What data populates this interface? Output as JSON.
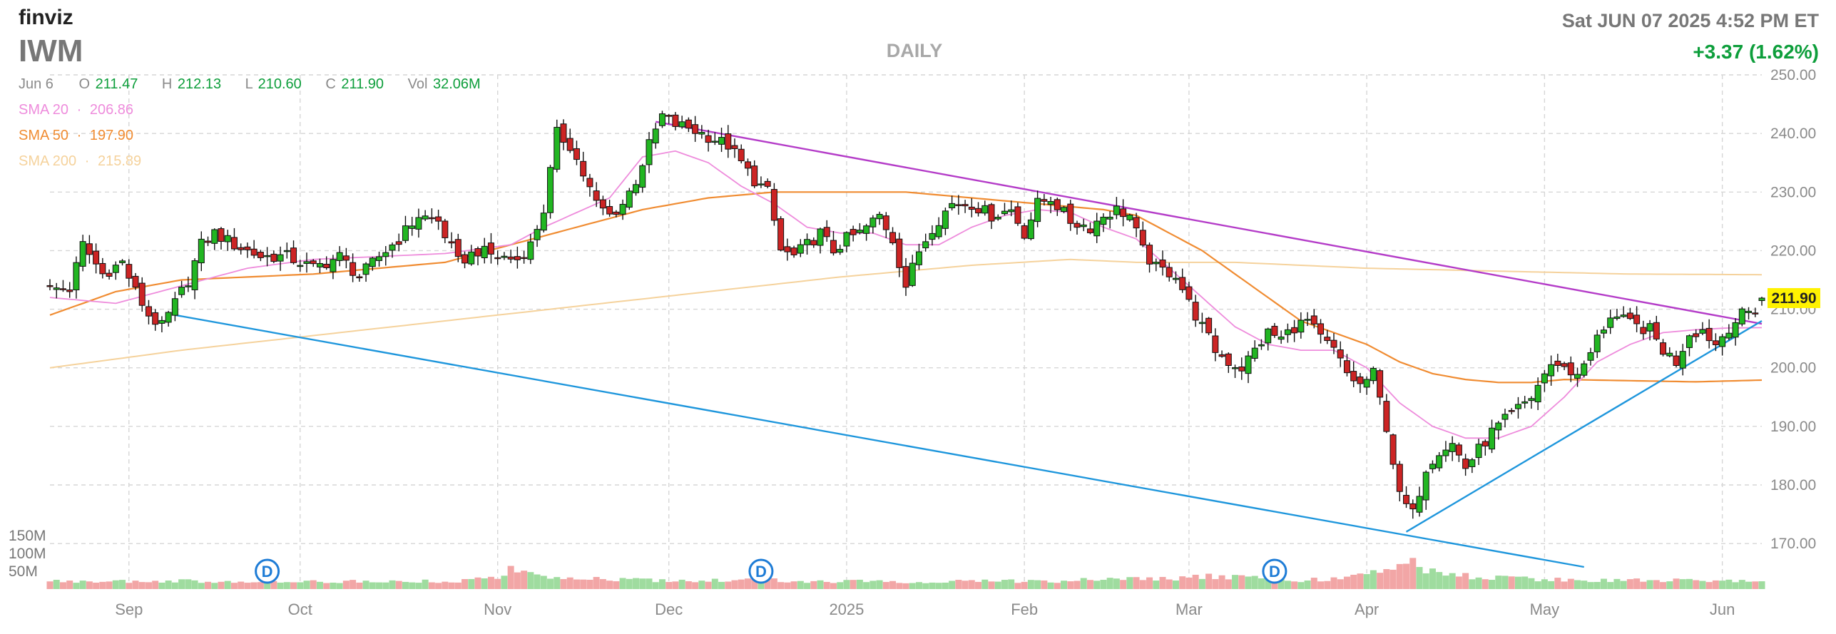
{
  "header": {
    "brand": "finviz",
    "ticker": "IWM",
    "timeframe": "DAILY",
    "datetime": "Sat JUN 07 2025 4:52 PM ET",
    "change": "+3.37 (1.62%)",
    "ohlc": {
      "date": "Jun 6",
      "o_label": "O",
      "o": "211.47",
      "h_label": "H",
      "h": "212.13",
      "l_label": "L",
      "l": "210.60",
      "c_label": "C",
      "c": "211.90",
      "vol_label": "Vol",
      "vol": "32.06M"
    },
    "sma": [
      {
        "label": "SMA 20",
        "value": "206.86"
      },
      {
        "label": "SMA 50",
        "value": "197.90"
      },
      {
        "label": "SMA 200",
        "value": "215.89"
      }
    ]
  },
  "colors": {
    "up": "#22b622",
    "down": "#cc2424",
    "vol_up": "#9fdc9f",
    "vol_down": "#f2a6a6",
    "sma20": "#ee8cdc",
    "sma50": "#f08c32",
    "sma200": "#f5d29c",
    "trend_upper": "#b43cc8",
    "trend_lower": "#1e96dc",
    "price_label_bg": "#fff200",
    "grid": "#d6d6d6",
    "axis_text": "#8a8a8a",
    "header_gray": "#777777",
    "header_green": "#0d9e3b",
    "dividend_blue": "#1e7cd6"
  },
  "chart_data": {
    "type": "candlestick",
    "ylim": [
      166,
      250
    ],
    "y_ticks": [
      {
        "value": 170,
        "label": "170.00"
      },
      {
        "value": 180,
        "label": "180.00"
      },
      {
        "value": 190,
        "label": "190.00"
      },
      {
        "value": 200,
        "label": "200.00"
      },
      {
        "value": 210,
        "label": "210.00"
      },
      {
        "value": 220,
        "label": "220.00"
      },
      {
        "value": 230,
        "label": "230.00"
      },
      {
        "value": 240,
        "label": "240.00"
      },
      {
        "value": 250,
        "label": "250.00"
      }
    ],
    "x_ticks": [
      {
        "bar": 12,
        "label": "Sep"
      },
      {
        "bar": 38,
        "label": "Oct"
      },
      {
        "bar": 68,
        "label": "Nov"
      },
      {
        "bar": 94,
        "label": "Dec"
      },
      {
        "bar": 121,
        "label": "2025"
      },
      {
        "bar": 148,
        "label": "Feb"
      },
      {
        "bar": 173,
        "label": "Mar"
      },
      {
        "bar": 200,
        "label": "Apr"
      },
      {
        "bar": 227,
        "label": "May"
      },
      {
        "bar": 254,
        "label": "Jun"
      }
    ],
    "last_price": {
      "value": 211.9,
      "label": "211.90"
    },
    "volume_scale_max": 220,
    "volume_ticks": [
      {
        "value": 150,
        "label": "150M"
      },
      {
        "value": 100,
        "label": "100M"
      },
      {
        "value": 50,
        "label": "50M"
      }
    ],
    "dividend_marks": [
      {
        "bar": 33,
        "label": "D"
      },
      {
        "bar": 108,
        "label": "D"
      },
      {
        "bar": 186,
        "label": "D"
      }
    ],
    "trendlines": [
      {
        "name": "upper",
        "from": {
          "bar": 92,
          "value": 242
        },
        "to": {
          "bar": 260,
          "value": 207.5
        }
      },
      {
        "name": "lower",
        "from": {
          "bar": 19,
          "value": 209
        },
        "to": {
          "bar": 233,
          "value": 166
        }
      },
      {
        "name": "support",
        "from": {
          "bar": 206,
          "value": 172
        },
        "to": {
          "bar": 260,
          "value": 208
        }
      }
    ],
    "anchors": [
      [
        0,
        213.5
      ],
      [
        3,
        213.5
      ],
      [
        5,
        221
      ],
      [
        8,
        216
      ],
      [
        11,
        218
      ],
      [
        13,
        213
      ],
      [
        15,
        209
      ],
      [
        17,
        207
      ],
      [
        19,
        211
      ],
      [
        21,
        215
      ],
      [
        23,
        221
      ],
      [
        25,
        223
      ],
      [
        28,
        221
      ],
      [
        32,
        219
      ],
      [
        36,
        219
      ],
      [
        40,
        217
      ],
      [
        44,
        219
      ],
      [
        47,
        215.5
      ],
      [
        50,
        219
      ],
      [
        53,
        222
      ],
      [
        56,
        226
      ],
      [
        59,
        225
      ],
      [
        62,
        218
      ],
      [
        65,
        220
      ],
      [
        68,
        219
      ],
      [
        71,
        218.5
      ],
      [
        73,
        221
      ],
      [
        75,
        227
      ],
      [
        77,
        240
      ],
      [
        79,
        238
      ],
      [
        81,
        233
      ],
      [
        83,
        228
      ],
      [
        85,
        226
      ],
      [
        87,
        228
      ],
      [
        89,
        232
      ],
      [
        91,
        238
      ],
      [
        93,
        243
      ],
      [
        95,
        241.5
      ],
      [
        97,
        241
      ],
      [
        99,
        240
      ],
      [
        101,
        239
      ],
      [
        103,
        238
      ],
      [
        105,
        235
      ],
      [
        107,
        232
      ],
      [
        109,
        230
      ],
      [
        111,
        220
      ],
      [
        113,
        219
      ],
      [
        115,
        221
      ],
      [
        117,
        223
      ],
      [
        119,
        220
      ],
      [
        121,
        222
      ],
      [
        123,
        223
      ],
      [
        126,
        226
      ],
      [
        128,
        222
      ],
      [
        130,
        214
      ],
      [
        132,
        220
      ],
      [
        134,
        224
      ],
      [
        137,
        228
      ],
      [
        140,
        228
      ],
      [
        143,
        226
      ],
      [
        146,
        227
      ],
      [
        148,
        223
      ],
      [
        150,
        228
      ],
      [
        152,
        229
      ],
      [
        155,
        225
      ],
      [
        158,
        224
      ],
      [
        160,
        226
      ],
      [
        162,
        227
      ],
      [
        164,
        226
      ],
      [
        166,
        220
      ],
      [
        168,
        217
      ],
      [
        171,
        216
      ],
      [
        173,
        211
      ],
      [
        175,
        207
      ],
      [
        177,
        203
      ],
      [
        179,
        201
      ],
      [
        181,
        200
      ],
      [
        183,
        203
      ],
      [
        185,
        206
      ],
      [
        187,
        205
      ],
      [
        189,
        207
      ],
      [
        191,
        208
      ],
      [
        193,
        205
      ],
      [
        195,
        203
      ],
      [
        197,
        199
      ],
      [
        199,
        197
      ],
      [
        201,
        199
      ],
      [
        203,
        190
      ],
      [
        205,
        178
      ],
      [
        207,
        175
      ],
      [
        209,
        183
      ],
      [
        211,
        186
      ],
      [
        213,
        187
      ],
      [
        215,
        183
      ],
      [
        217,
        186
      ],
      [
        219,
        189
      ],
      [
        221,
        191
      ],
      [
        223,
        193
      ],
      [
        225,
        195
      ],
      [
        227,
        199
      ],
      [
        229,
        201
      ],
      [
        231,
        199
      ],
      [
        233,
        200
      ],
      [
        235,
        205
      ],
      [
        237,
        209
      ],
      [
        239,
        208
      ],
      [
        241,
        207
      ],
      [
        243,
        206.5
      ],
      [
        245,
        203
      ],
      [
        247,
        201
      ],
      [
        249,
        206
      ],
      [
        251,
        206.5
      ],
      [
        253,
        204
      ],
      [
        255,
        207
      ],
      [
        257,
        209
      ],
      [
        259,
        210
      ],
      [
        260,
        211.9
      ]
    ],
    "volume_anchors": [
      [
        0,
        22
      ],
      [
        20,
        24
      ],
      [
        35,
        20
      ],
      [
        50,
        22
      ],
      [
        62,
        23
      ],
      [
        66,
        30
      ],
      [
        68,
        34
      ],
      [
        70,
        58
      ],
      [
        75,
        30
      ],
      [
        90,
        26
      ],
      [
        100,
        23
      ],
      [
        108,
        30
      ],
      [
        112,
        22
      ],
      [
        121,
        22
      ],
      [
        135,
        21
      ],
      [
        150,
        22
      ],
      [
        160,
        26
      ],
      [
        170,
        30
      ],
      [
        175,
        35
      ],
      [
        185,
        30
      ],
      [
        190,
        26
      ],
      [
        195,
        28
      ],
      [
        200,
        40
      ],
      [
        203,
        62
      ],
      [
        205,
        78
      ],
      [
        207,
        72
      ],
      [
        209,
        50
      ],
      [
        213,
        40
      ],
      [
        220,
        32
      ],
      [
        230,
        25
      ],
      [
        240,
        24
      ],
      [
        250,
        25
      ],
      [
        260,
        22
      ]
    ],
    "sma_anchors": {
      "sma20": [
        [
          0,
          212
        ],
        [
          10,
          211
        ],
        [
          20,
          214
        ],
        [
          30,
          217
        ],
        [
          40,
          218.5
        ],
        [
          50,
          219
        ],
        [
          60,
          219.5
        ],
        [
          70,
          221
        ],
        [
          75,
          224
        ],
        [
          80,
          226.5
        ],
        [
          85,
          229
        ],
        [
          90,
          236
        ],
        [
          95,
          237
        ],
        [
          100,
          235
        ],
        [
          105,
          231
        ],
        [
          110,
          228
        ],
        [
          115,
          224
        ],
        [
          120,
          223
        ],
        [
          125,
          223
        ],
        [
          130,
          221
        ],
        [
          135,
          221
        ],
        [
          140,
          224
        ],
        [
          145,
          226
        ],
        [
          150,
          227
        ],
        [
          155,
          226.5
        ],
        [
          160,
          224
        ],
        [
          165,
          222
        ],
        [
          170,
          217
        ],
        [
          175,
          212
        ],
        [
          180,
          207
        ],
        [
          185,
          204
        ],
        [
          190,
          203
        ],
        [
          195,
          203
        ],
        [
          200,
          200
        ],
        [
          205,
          194
        ],
        [
          210,
          190
        ],
        [
          215,
          188
        ],
        [
          220,
          188
        ],
        [
          225,
          190
        ],
        [
          230,
          195
        ],
        [
          235,
          201
        ],
        [
          240,
          204
        ],
        [
          245,
          206
        ],
        [
          250,
          206.5
        ],
        [
          255,
          206.8
        ],
        [
          260,
          206.86
        ]
      ],
      "sma50": [
        [
          0,
          209
        ],
        [
          10,
          213
        ],
        [
          20,
          215
        ],
        [
          30,
          215.5
        ],
        [
          40,
          216
        ],
        [
          50,
          217
        ],
        [
          60,
          218
        ],
        [
          70,
          221
        ],
        [
          80,
          224
        ],
        [
          90,
          227
        ],
        [
          100,
          229
        ],
        [
          110,
          230
        ],
        [
          120,
          230
        ],
        [
          130,
          230
        ],
        [
          140,
          229
        ],
        [
          150,
          228
        ],
        [
          160,
          227
        ],
        [
          165,
          226
        ],
        [
          170,
          223
        ],
        [
          175,
          220
        ],
        [
          180,
          216
        ],
        [
          185,
          212
        ],
        [
          190,
          208
        ],
        [
          195,
          206
        ],
        [
          200,
          204
        ],
        [
          205,
          201
        ],
        [
          210,
          199
        ],
        [
          215,
          198
        ],
        [
          220,
          197.5
        ],
        [
          225,
          197.5
        ],
        [
          230,
          198
        ],
        [
          240,
          197.8
        ],
        [
          250,
          197.6
        ],
        [
          260,
          197.9
        ]
      ],
      "sma200": [
        [
          0,
          200
        ],
        [
          20,
          203
        ],
        [
          40,
          205.5
        ],
        [
          60,
          208
        ],
        [
          80,
          210.5
        ],
        [
          100,
          213
        ],
        [
          120,
          215.5
        ],
        [
          140,
          217.5
        ],
        [
          155,
          218.5
        ],
        [
          165,
          218
        ],
        [
          180,
          218
        ],
        [
          200,
          217
        ],
        [
          220,
          216.5
        ],
        [
          240,
          216
        ],
        [
          260,
          215.89
        ]
      ]
    }
  }
}
